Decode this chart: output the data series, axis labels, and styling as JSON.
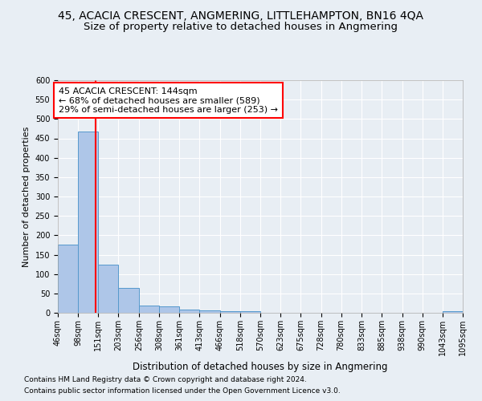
{
  "title": "45, ACACIA CRESCENT, ANGMERING, LITTLEHAMPTON, BN16 4QA",
  "subtitle": "Size of property relative to detached houses in Angmering",
  "xlabel": "Distribution of detached houses by size in Angmering",
  "ylabel": "Number of detached properties",
  "footnote1": "Contains HM Land Registry data © Crown copyright and database right 2024.",
  "footnote2": "Contains public sector information licensed under the Open Government Licence v3.0.",
  "bin_edges": [
    46,
    98,
    151,
    203,
    256,
    308,
    361,
    413,
    466,
    518,
    570,
    623,
    675,
    728,
    780,
    833,
    885,
    938,
    990,
    1043,
    1095
  ],
  "bin_labels": [
    "46sqm",
    "98sqm",
    "151sqm",
    "203sqm",
    "256sqm",
    "308sqm",
    "361sqm",
    "413sqm",
    "466sqm",
    "518sqm",
    "570sqm",
    "623sqm",
    "675sqm",
    "728sqm",
    "780sqm",
    "833sqm",
    "885sqm",
    "938sqm",
    "990sqm",
    "1043sqm",
    "1095sqm"
  ],
  "bar_heights": [
    176,
    467,
    125,
    65,
    18,
    17,
    9,
    6,
    5,
    4,
    0,
    0,
    0,
    0,
    0,
    0,
    0,
    0,
    0,
    5
  ],
  "bar_color": "#aec6e8",
  "bar_edge_color": "#5599cc",
  "property_size": 144,
  "annotation_line1": "45 ACACIA CRESCENT: 144sqm",
  "annotation_line2": "← 68% of detached houses are smaller (589)",
  "annotation_line3": "29% of semi-detached houses are larger (253) →",
  "annotation_box_color": "white",
  "annotation_box_edge_color": "red",
  "red_line_color": "red",
  "ylim": [
    0,
    600
  ],
  "yticks": [
    0,
    50,
    100,
    150,
    200,
    250,
    300,
    350,
    400,
    450,
    500,
    550,
    600
  ],
  "background_color": "#e8eef4",
  "plot_bg_color": "#e8eef4",
  "grid_color": "white",
  "title_fontsize": 10,
  "subtitle_fontsize": 9.5,
  "xlabel_fontsize": 8.5,
  "ylabel_fontsize": 8,
  "tick_fontsize": 7,
  "annotation_fontsize": 8
}
